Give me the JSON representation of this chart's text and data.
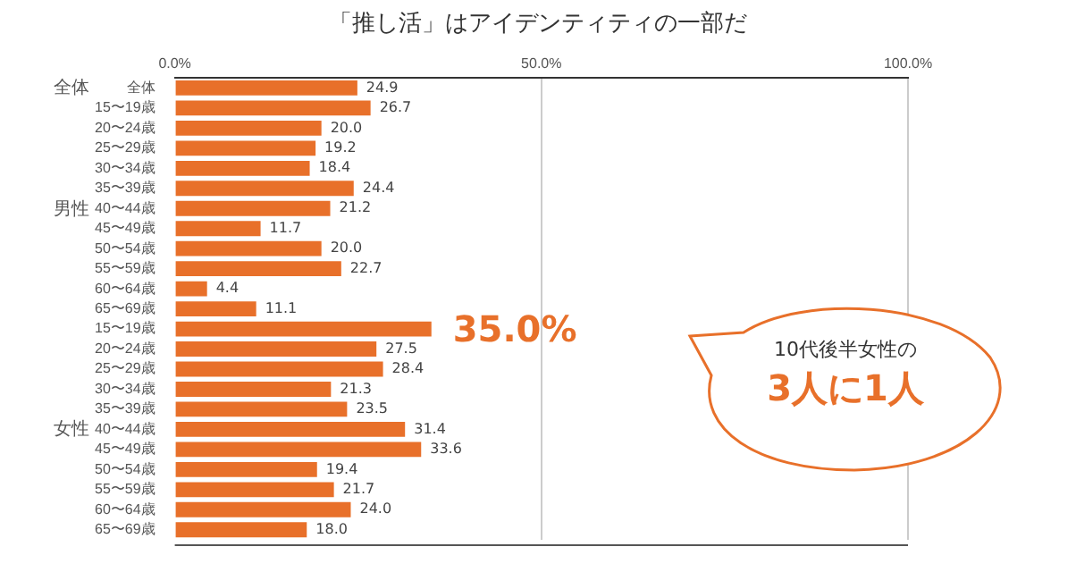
{
  "chart_data": {
    "type": "bar",
    "orientation": "horizontal",
    "title": "「推し活」はアイデンティティの一部だ",
    "categories": [
      "全体",
      "15〜19歳",
      "20〜24歳",
      "25〜29歳",
      "30〜34歳",
      "35〜39歳",
      "40〜44歳",
      "45〜49歳",
      "50〜54歳",
      "55〜59歳",
      "60〜64歳",
      "65〜69歳",
      "15〜19歳",
      "20〜24歳",
      "25〜29歳",
      "30〜34歳",
      "35〜39歳",
      "40〜44歳",
      "45〜49歳",
      "50〜54歳",
      "55〜59歳",
      "60〜64歳",
      "65〜69歳"
    ],
    "values": [
      24.9,
      26.7,
      20.0,
      19.2,
      18.4,
      24.4,
      21.2,
      11.7,
      20.0,
      22.7,
      4.4,
      11.1,
      35.0,
      27.5,
      28.4,
      21.3,
      23.5,
      31.4,
      33.6,
      19.4,
      21.7,
      24.0,
      18.0
    ],
    "value_labels": [
      "24.9",
      "26.7",
      "20.0",
      "19.2",
      "18.4",
      "24.4",
      "21.2",
      "11.7",
      "20.0",
      "22.7",
      "4.4",
      "11.1",
      "35.0%",
      "27.5",
      "28.4",
      "21.3",
      "23.5",
      "31.4",
      "33.6",
      "19.4",
      "21.7",
      "24.0",
      "18.0"
    ],
    "color": "#e8702a",
    "xlim": [
      0,
      100
    ],
    "xticks": [
      {
        "value": 0,
        "label": "0.0%"
      },
      {
        "value": 50,
        "label": "50.0%"
      },
      {
        "value": 100,
        "label": "100.0%"
      }
    ],
    "grid": "x",
    "legend": false,
    "annotations": [
      "全体",
      "男性",
      "女性",
      "10代後半女性の",
      "3人に1人"
    ]
  }
}
